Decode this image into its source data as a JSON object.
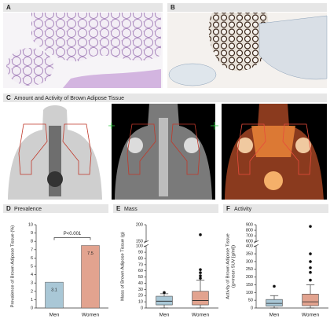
{
  "panels": {
    "a": {
      "label": "A"
    },
    "b": {
      "label": "B"
    },
    "c": {
      "label": "C",
      "title": "Amount and Activity of Brown Adipose Tissue"
    }
  },
  "chart_data": [
    {
      "type": "bar",
      "label": "D",
      "title": "Prevalence",
      "ylabel": [
        "Prevalence of Brown Adipose Tissue (%)"
      ],
      "annotation": "P<0.001",
      "categories": [
        "Men",
        "Women"
      ],
      "values": [
        3.1,
        7.5
      ],
      "colors": [
        "#a9c7d6",
        "#e2a38f"
      ],
      "ylim": [
        0,
        10
      ],
      "yticks": [
        0,
        1,
        2,
        3,
        4,
        5,
        6,
        7,
        8,
        9,
        10
      ]
    },
    {
      "type": "box",
      "label": "E",
      "title": "Mass",
      "ylabel": [
        "Mass of Brown Adipose Tissue (g)"
      ],
      "categories": [
        "Men",
        "Women"
      ],
      "colors": [
        "#a9c7d6",
        "#e2a38f"
      ],
      "min": [
        0,
        0
      ],
      "q1": [
        5,
        5
      ],
      "median": [
        11,
        12
      ],
      "q3": [
        19,
        27
      ],
      "max": [
        23,
        45
      ],
      "outliers": [
        [
          25
        ],
        [
          48,
          52,
          57,
          62,
          170
        ]
      ],
      "ylim": [
        0,
        200
      ],
      "ybreak": [
        100,
        150
      ],
      "yticks": [
        0,
        10,
        20,
        30,
        40,
        50,
        60,
        70,
        80,
        90,
        100,
        150,
        200
      ]
    },
    {
      "type": "box",
      "label": "F",
      "title": "Activity",
      "ylabel": [
        "Activity of Brown Adipose Tissue",
        "(g×mean SUV [g/ml])"
      ],
      "categories": [
        "Men",
        "Women"
      ],
      "colors": [
        "#a9c7d6",
        "#e2a38f"
      ],
      "min": [
        0,
        0
      ],
      "q1": [
        12,
        15
      ],
      "median": [
        30,
        40
      ],
      "q3": [
        55,
        90
      ],
      "max": [
        80,
        150
      ],
      "outliers": [
        [
          140
        ],
        [
          180,
          230,
          260,
          300,
          350,
          870
        ]
      ],
      "ylim": [
        0,
        900
      ],
      "ybreak": [
        400,
        600
      ],
      "yticks": [
        0,
        50,
        100,
        150,
        200,
        250,
        300,
        350,
        400,
        600,
        700,
        800,
        900
      ]
    }
  ]
}
